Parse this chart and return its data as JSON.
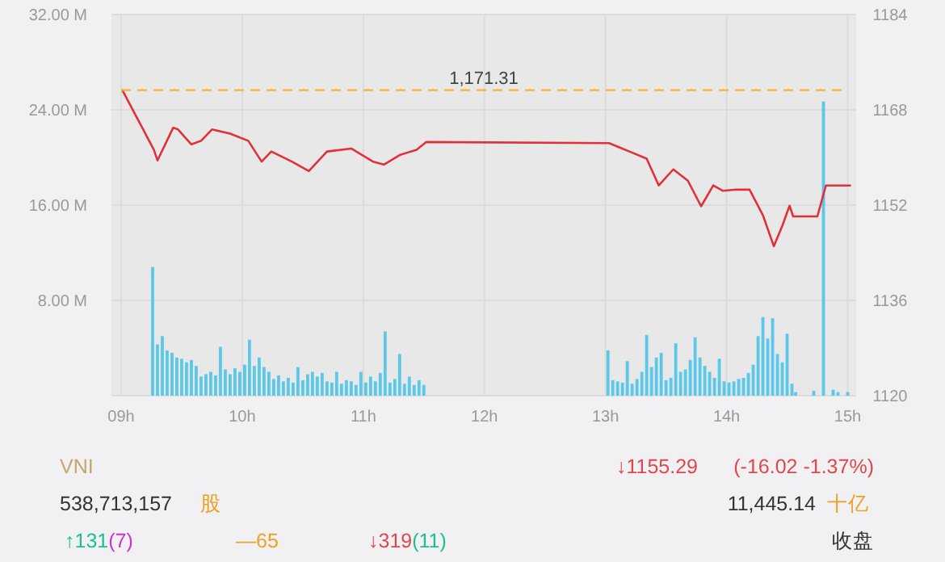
{
  "chart_data": [
    {
      "type": "bar",
      "xlim": [
        8.92,
        15.07
      ],
      "xticks": [
        {
          "value": 9,
          "label": "09h"
        },
        {
          "value": 10,
          "label": "10h"
        },
        {
          "value": 11,
          "label": "11h"
        },
        {
          "value": 12,
          "label": "12h"
        },
        {
          "value": 13,
          "label": "13h"
        },
        {
          "value": 14,
          "label": "14h"
        },
        {
          "value": 15,
          "label": "15h"
        }
      ],
      "ylim": [
        0,
        32
      ],
      "yticks": [
        {
          "value": 0,
          "label": null
        },
        {
          "value": 8,
          "label": "8.00 M"
        },
        {
          "value": 16,
          "label": "16.00 M"
        },
        {
          "value": 24,
          "label": "24.00 M"
        },
        {
          "value": 32,
          "label": "32.00 M"
        }
      ],
      "y2lim": [
        1120,
        1184
      ],
      "y2ticks": [
        1120,
        1136,
        1152,
        1168,
        1184
      ],
      "grid": true,
      "ref_lines": [
        {
          "axis": "y2",
          "value": 1171.31,
          "label": "1,171.31",
          "color": "#f5b335",
          "line_style": "dashed"
        }
      ],
      "series": [
        {
          "type": "bar",
          "axis": "y",
          "color": "#5bc8ea",
          "x": [
            9.26,
            9.3,
            9.34,
            9.38,
            9.42,
            9.46,
            9.5,
            9.54,
            9.58,
            9.62,
            9.66,
            9.7,
            9.74,
            9.78,
            9.82,
            9.86,
            9.9,
            9.94,
            9.98,
            10.02,
            10.06,
            10.1,
            10.14,
            10.18,
            10.22,
            10.26,
            10.3,
            10.34,
            10.38,
            10.42,
            10.46,
            10.5,
            10.54,
            10.58,
            10.62,
            10.66,
            10.7,
            10.74,
            10.78,
            10.82,
            10.86,
            10.9,
            10.94,
            10.98,
            11.02,
            11.06,
            11.1,
            11.14,
            11.18,
            11.22,
            11.26,
            11.3,
            11.34,
            11.38,
            11.42,
            11.46,
            11.5,
            13.02,
            13.06,
            13.1,
            13.14,
            13.18,
            13.22,
            13.26,
            13.3,
            13.34,
            13.38,
            13.42,
            13.46,
            13.5,
            13.54,
            13.58,
            13.62,
            13.66,
            13.7,
            13.74,
            13.78,
            13.82,
            13.86,
            13.9,
            13.94,
            13.98,
            14.02,
            14.06,
            14.1,
            14.14,
            14.18,
            14.22,
            14.26,
            14.3,
            14.34,
            14.38,
            14.42,
            14.46,
            14.5,
            14.54,
            14.57,
            14.72,
            14.8,
            14.88,
            14.92,
            15.0
          ],
          "values": [
            10.8,
            4.3,
            5.0,
            3.8,
            3.6,
            3.2,
            3.1,
            2.8,
            3.0,
            2.5,
            1.6,
            1.8,
            2.0,
            1.7,
            4.1,
            2.2,
            1.8,
            2.3,
            2.0,
            2.6,
            4.7,
            2.5,
            3.2,
            2.4,
            2.0,
            1.4,
            1.7,
            1.2,
            1.5,
            1.1,
            2.4,
            1.3,
            1.8,
            2.0,
            1.6,
            1.9,
            1.2,
            1.1,
            2.0,
            1.0,
            1.3,
            1.2,
            0.9,
            2.0,
            1.1,
            1.6,
            1.2,
            1.9,
            5.4,
            1.1,
            1.4,
            3.5,
            1.0,
            1.6,
            0.9,
            1.3,
            0.9,
            3.8,
            1.3,
            1.2,
            1.1,
            2.9,
            1.0,
            1.4,
            2.0,
            5.1,
            2.4,
            3.2,
            3.6,
            1.3,
            1.5,
            4.4,
            2.0,
            2.2,
            3.0,
            4.9,
            3.2,
            2.5,
            2.0,
            1.5,
            3.1,
            1.2,
            1.1,
            1.2,
            1.4,
            1.5,
            1.9,
            2.6,
            5.0,
            6.6,
            4.8,
            6.5,
            3.5,
            2.8,
            5.2,
            1.0,
            0.3,
            0.4,
            24.7,
            0.5,
            0.3,
            0.3
          ]
        },
        {
          "type": "line",
          "axis": "y2",
          "color": "#e0303a",
          "x": [
            9.01,
            9.27,
            9.3,
            9.43,
            9.47,
            9.58,
            9.66,
            9.75,
            9.9,
            10.05,
            10.16,
            10.24,
            10.41,
            10.55,
            10.7,
            10.9,
            11.08,
            11.17,
            11.3,
            11.44,
            11.52,
            13.03,
            13.21,
            13.34,
            13.44,
            13.56,
            13.68,
            13.79,
            13.89,
            13.97,
            14.08,
            14.19,
            14.3,
            14.39,
            14.46,
            14.52,
            14.55,
            14.75,
            14.82,
            15.02
          ],
          "values": [
            1171.31,
            1161.3,
            1159.5,
            1165.0,
            1164.7,
            1162.2,
            1162.8,
            1164.7,
            1164.0,
            1162.8,
            1159.3,
            1161.0,
            1159.3,
            1157.7,
            1161.0,
            1161.5,
            1159.3,
            1158.8,
            1160.4,
            1161.3,
            1162.6,
            1162.4,
            1160.9,
            1159.8,
            1155.3,
            1158.0,
            1156.1,
            1151.8,
            1155.3,
            1154.4,
            1154.6,
            1154.6,
            1150.3,
            1145.1,
            1148.5,
            1151.9,
            1150.1,
            1150.1,
            1155.29,
            1155.29
          ]
        }
      ]
    },
    {
      "type": "other",
      "title": "VNI",
      "annotations": [
        "↓1155.29",
        "(-16.02  -1.37%)",
        "538,713,157",
        "股",
        "11,445.14",
        "十亿",
        "↑131",
        "(7)",
        "—65",
        "↓319",
        "(11)",
        "收盘"
      ]
    }
  ]
}
